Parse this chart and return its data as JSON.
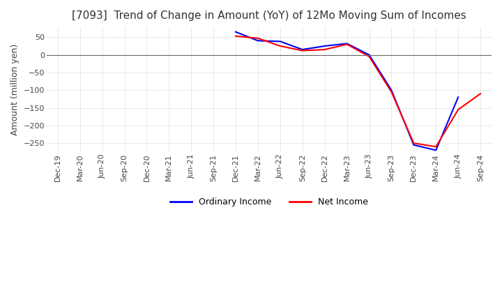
{
  "title": "[7093]  Trend of Change in Amount (YoY) of 12Mo Moving Sum of Incomes",
  "ylabel": "Amount (million yen)",
  "ylim": [
    -275,
    80
  ],
  "yticks": [
    50,
    0,
    -50,
    -100,
    -150,
    -200,
    -250
  ],
  "background_color": "#ffffff",
  "grid_color": "#aaaaaa",
  "x_labels": [
    "Dec-19",
    "Mar-20",
    "Jun-20",
    "Sep-20",
    "Dec-20",
    "Mar-21",
    "Jun-21",
    "Sep-21",
    "Dec-21",
    "Mar-22",
    "Jun-22",
    "Sep-22",
    "Dec-22",
    "Mar-23",
    "Jun-23",
    "Sep-23",
    "Dec-23",
    "Mar-24",
    "Jun-24",
    "Sep-24"
  ],
  "ordinary_income": [
    null,
    null,
    null,
    null,
    null,
    null,
    null,
    null,
    65,
    40,
    38,
    15,
    25,
    32,
    0,
    -100,
    -255,
    -270,
    -120,
    null
  ],
  "net_income": [
    null,
    null,
    null,
    null,
    null,
    null,
    null,
    null,
    53,
    47,
    25,
    12,
    15,
    30,
    -5,
    -105,
    -250,
    -260,
    -155,
    -110
  ],
  "ordinary_color": "#0000ff",
  "net_color": "#ff0000",
  "line_width": 1.5,
  "title_fontsize": 11,
  "tick_fontsize": 8,
  "ylabel_fontsize": 9
}
